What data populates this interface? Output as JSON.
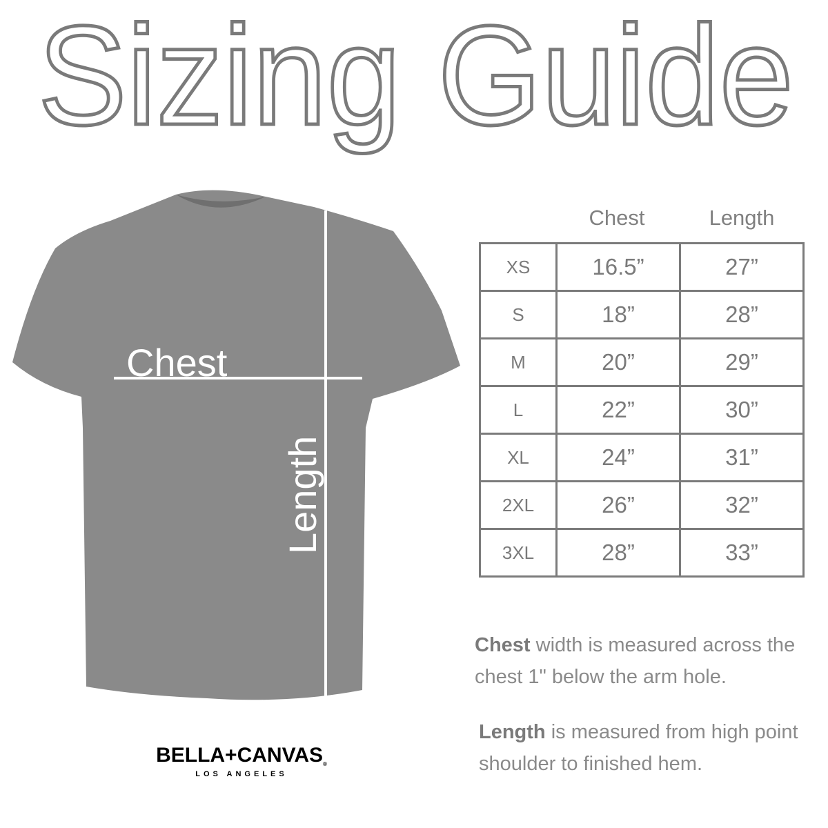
{
  "title": "Sizing Guide",
  "shirt": {
    "chest_label": "Chest",
    "length_label": "Length",
    "color": "#8a8a8a"
  },
  "table": {
    "headers": [
      "Chest",
      "Length"
    ],
    "rows": [
      {
        "size": "XS",
        "chest": "16.5”",
        "length": "27”"
      },
      {
        "size": "S",
        "chest": "18”",
        "length": "28”"
      },
      {
        "size": "M",
        "chest": "20”",
        "length": "29”"
      },
      {
        "size": "L",
        "chest": "22”",
        "length": "30”"
      },
      {
        "size": "XL",
        "chest": "24”",
        "length": "31”"
      },
      {
        "size": "2XL",
        "chest": "26”",
        "length": "32”"
      },
      {
        "size": "3XL",
        "chest": "28”",
        "length": "33”"
      }
    ]
  },
  "notes": {
    "chest_bold": "Chest",
    "chest_text": " width is measured across the chest 1\" below the arm hole.",
    "length_bold": "Length",
    "length_text": " is measured from high point shoulder to finished hem."
  },
  "logo": {
    "brand": "BELLA+CANVAS",
    "registered": "®",
    "city": "LOS ANGELES"
  }
}
